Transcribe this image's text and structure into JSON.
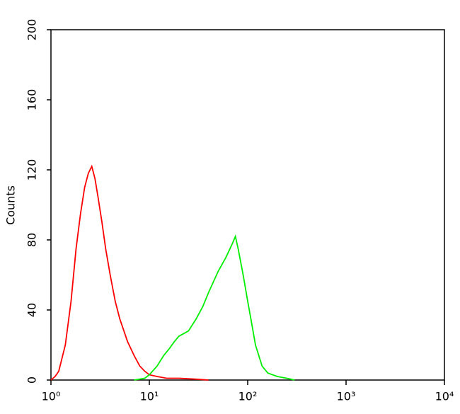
{
  "chart_data": {
    "type": "line",
    "y_label": "Counts",
    "log_x": true,
    "xlim": [
      1,
      10000
    ],
    "ylim": [
      0,
      200
    ],
    "xticks": [
      {
        "value": 1,
        "label": "10⁰"
      },
      {
        "value": 10,
        "label": "10¹"
      },
      {
        "value": 100,
        "label": "10²"
      },
      {
        "value": 1000,
        "label": "10³"
      },
      {
        "value": 10000,
        "label": "10⁴"
      }
    ],
    "yticks": [
      0,
      40,
      80,
      120,
      160,
      200
    ],
    "series": [
      {
        "color": "#ff0000",
        "x": [
          1.0,
          1.1,
          1.2,
          1.4,
          1.6,
          1.8,
          2.0,
          2.2,
          2.4,
          2.6,
          2.8,
          3.0,
          3.3,
          3.6,
          4.0,
          4.5,
          5,
          6,
          7,
          8,
          9,
          10,
          12,
          15,
          20,
          30,
          40
        ],
        "values": [
          0,
          2,
          5,
          20,
          45,
          75,
          95,
          110,
          118,
          122,
          115,
          105,
          90,
          75,
          60,
          45,
          35,
          22,
          14,
          8,
          5,
          3,
          2,
          1,
          1,
          0.5,
          0
        ]
      },
      {
        "color": "#00ee00",
        "x": [
          7,
          9,
          10,
          12,
          14,
          16,
          18,
          20,
          25,
          30,
          35,
          40,
          50,
          60,
          70,
          75,
          80,
          90,
          100,
          110,
          120,
          140,
          160,
          200,
          250,
          300
        ],
        "values": [
          0,
          1,
          3,
          8,
          14,
          18,
          22,
          25,
          28,
          35,
          42,
          50,
          62,
          70,
          78,
          82,
          75,
          60,
          45,
          32,
          20,
          8,
          4,
          2,
          1,
          0
        ]
      }
    ]
  }
}
